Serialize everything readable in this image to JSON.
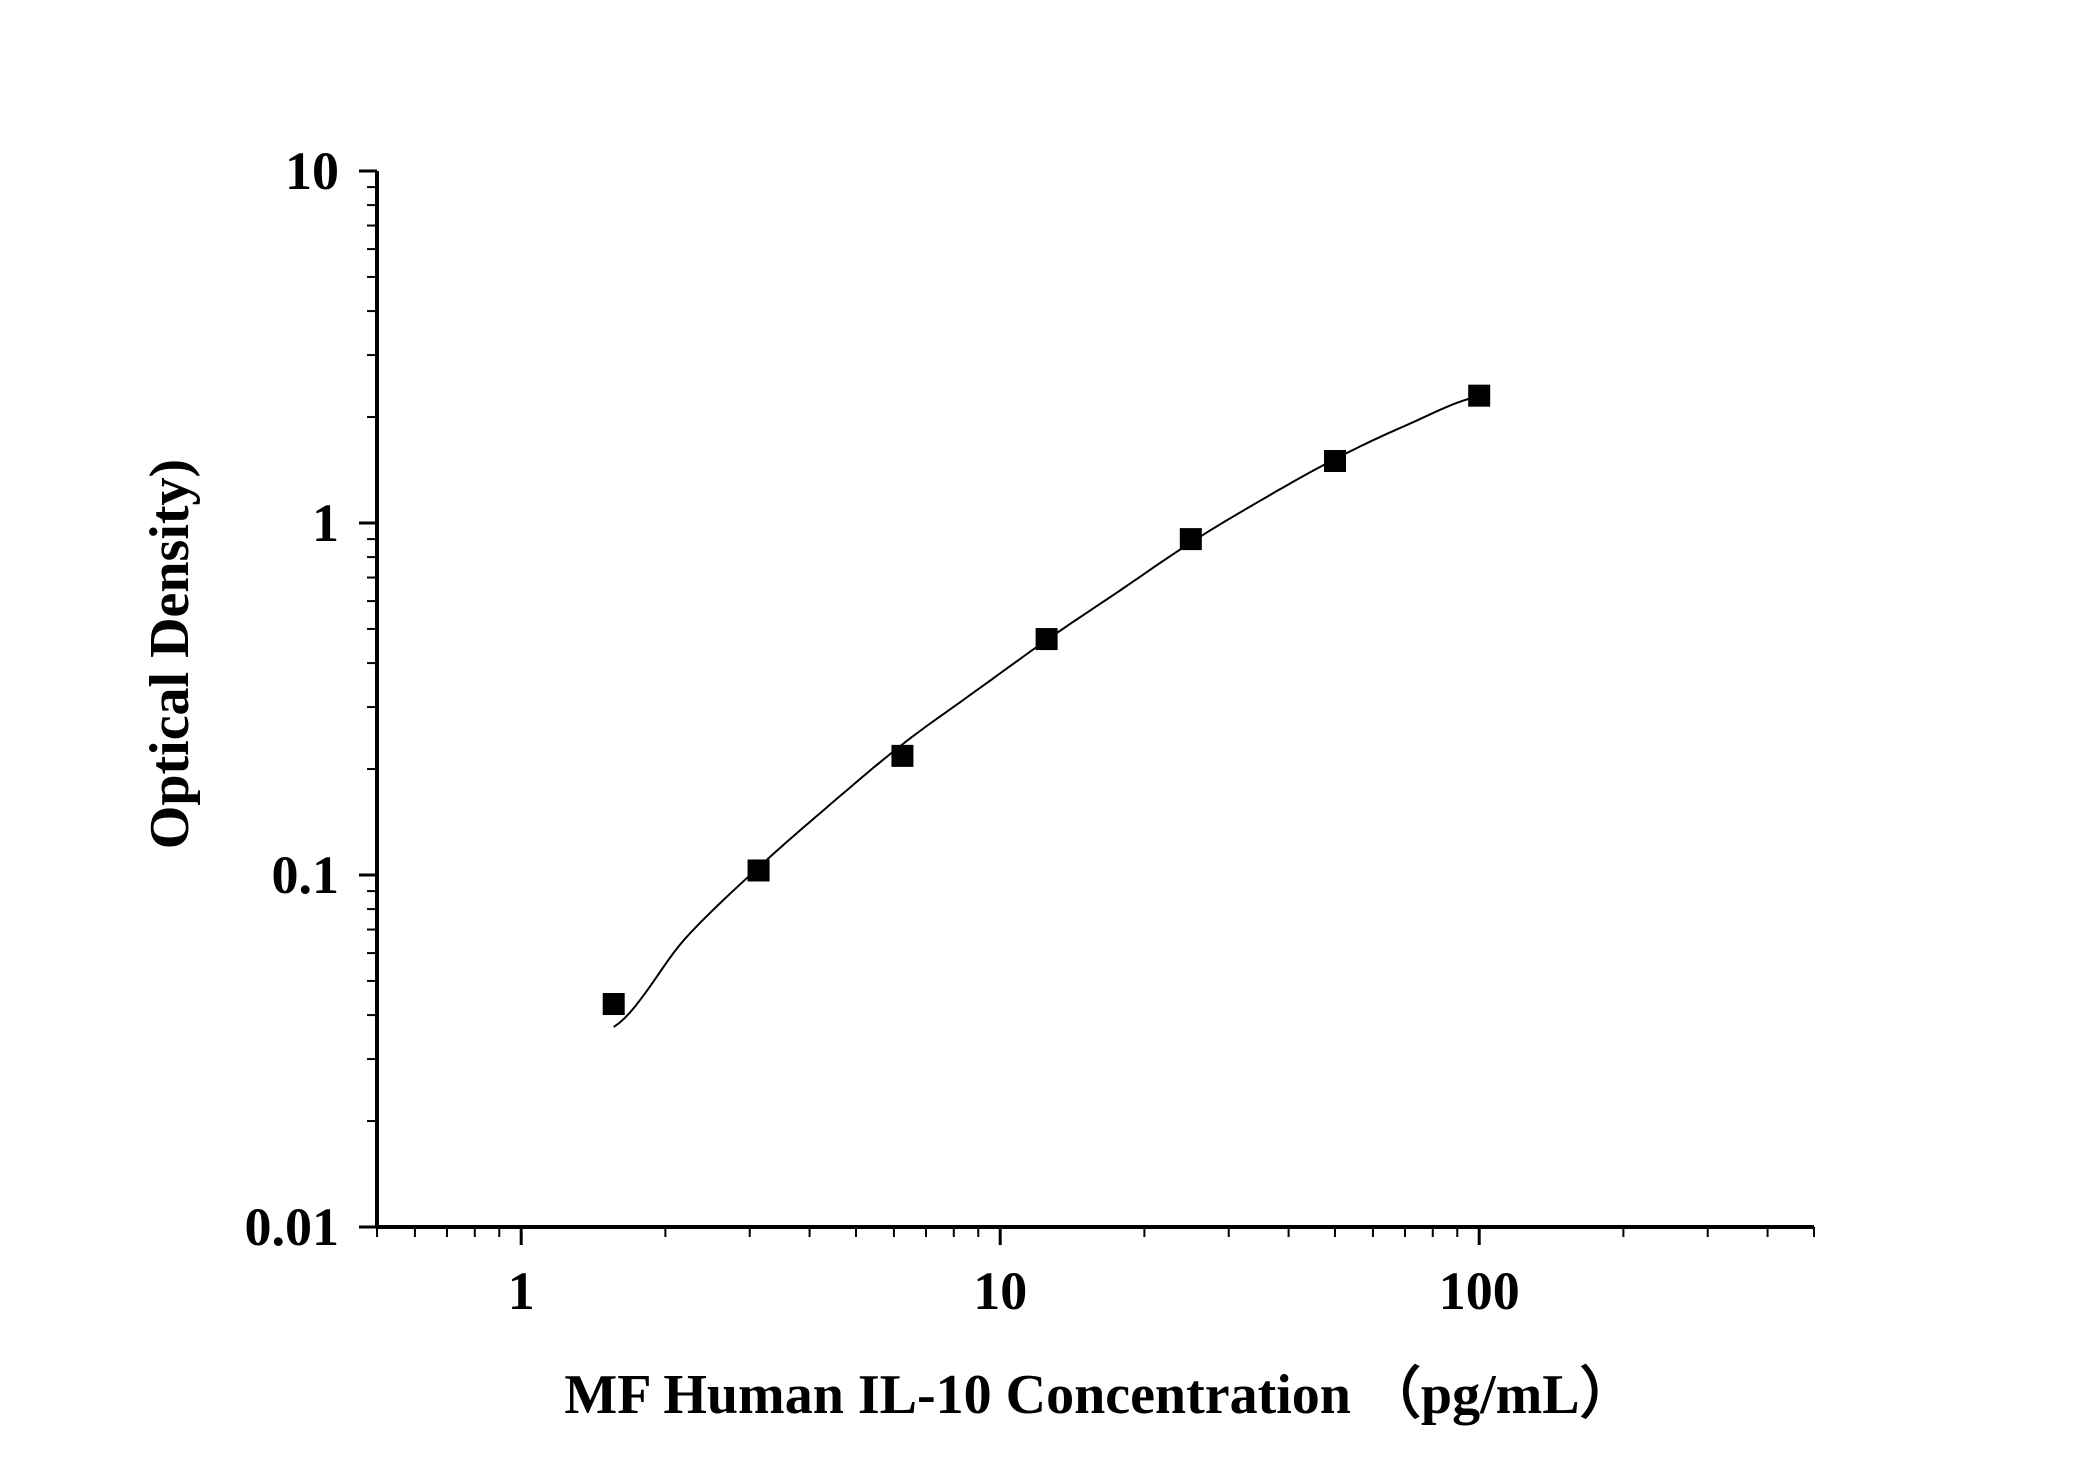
{
  "chart_data": {
    "type": "scatter",
    "title": "",
    "xlabel": "MF Human IL-10 Concentration （pg/mL）",
    "ylabel": "Optical Density)",
    "xscale": "log",
    "yscale": "log",
    "xlim": [
      0.5,
      500
    ],
    "ylim": [
      0.01,
      10
    ],
    "x_ticks": [
      1,
      10,
      100
    ],
    "x_tick_labels": [
      "1",
      "10",
      "100"
    ],
    "y_ticks": [
      0.01,
      0.1,
      1,
      10
    ],
    "y_tick_labels": [
      "0.01",
      "0.1",
      "1",
      "10"
    ],
    "grid": false,
    "legend": "none",
    "series": [
      {
        "marker": "square",
        "color": "#000000",
        "points": [
          {
            "x": 1.56,
            "y": 0.043
          },
          {
            "x": 3.13,
            "y": 0.103
          },
          {
            "x": 6.25,
            "y": 0.218
          },
          {
            "x": 12.5,
            "y": 0.468
          },
          {
            "x": 25,
            "y": 0.9
          },
          {
            "x": 50,
            "y": 1.5
          },
          {
            "x": 100,
            "y": 2.3
          }
        ]
      }
    ],
    "fit_curve": {
      "color": "#000000",
      "x_range": [
        1.56,
        100
      ],
      "points": [
        {
          "x": 1.56,
          "y": 0.037
        },
        {
          "x": 2.2,
          "y": 0.066
        },
        {
          "x": 3.13,
          "y": 0.105
        },
        {
          "x": 4.4,
          "y": 0.158
        },
        {
          "x": 6.25,
          "y": 0.235
        },
        {
          "x": 8.8,
          "y": 0.33
        },
        {
          "x": 12.5,
          "y": 0.465
        },
        {
          "x": 17.7,
          "y": 0.64
        },
        {
          "x": 25,
          "y": 0.88
        },
        {
          "x": 35.4,
          "y": 1.17
        },
        {
          "x": 50,
          "y": 1.52
        },
        {
          "x": 70.7,
          "y": 1.9
        },
        {
          "x": 100,
          "y": 2.29
        }
      ]
    }
  }
}
